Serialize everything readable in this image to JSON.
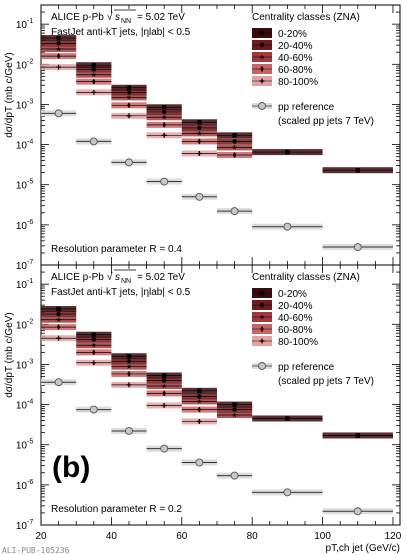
{
  "figure_id": "ALI-PUB-105236",
  "chart_data": [
    {
      "type": "scatter",
      "panel_label": "",
      "system_text": "ALICE p-Pb",
      "energy_text": "= 5.02 TeV",
      "jet_text": "FastJet anti-kT jets, |ηlab| < 0.5",
      "resolution_text": "Resolution parameter R = 0.4",
      "legend_title": "Centrality classes (ZNA)",
      "legend_placement": "top-right",
      "ylabel": "dσ/dpT (mb c/GeV)",
      "yscale": "log",
      "ylim": [
        1e-07,
        0.3
      ],
      "xlim": [
        20,
        122
      ],
      "x": [
        25,
        35,
        45,
        55,
        65,
        75,
        90,
        110
      ],
      "xerr": [
        5,
        5,
        5,
        5,
        5,
        5,
        10,
        10
      ],
      "series": [
        {
          "name": "0-20%",
          "marker": "square",
          "color": "#3d0a0e",
          "values": [
            0.045,
            0.0095,
            0.0026,
            0.00085,
            0.00036,
            0.00017,
            6.5e-05,
            2.3e-05
          ]
        },
        {
          "name": "20-40%",
          "marker": "circle",
          "color": "#6e1a1f",
          "values": [
            0.033,
            0.0075,
            0.002,
            0.00065,
            0.00026,
            0.00012,
            null,
            null
          ]
        },
        {
          "name": "40-60%",
          "marker": "star",
          "color": "#a13a3c",
          "values": [
            0.024,
            0.0055,
            0.0015,
            0.00048,
            0.00019,
            8.5e-05,
            null,
            null
          ]
        },
        {
          "name": "60-80%",
          "marker": "diamond",
          "color": "#c96466",
          "values": [
            0.016,
            0.0037,
            0.00095,
            0.00031,
            0.00012,
            5.5e-05,
            null,
            null
          ]
        },
        {
          "name": "80-100%",
          "marker": "cross",
          "color": "#e5a2a3",
          "values": [
            0.0085,
            0.002,
            0.00052,
            0.00017,
            6e-05,
            null,
            null,
            null
          ]
        },
        {
          "name": "pp reference",
          "name2": "(scaled pp jets 7 TeV)",
          "marker": "open-circle",
          "color": "#bfbfbf",
          "values": [
            0.0006,
            0.00012,
            3.6e-05,
            1.2e-05,
            5e-06,
            2.2e-06,
            9e-07,
            2.8e-07
          ]
        }
      ]
    },
    {
      "type": "scatter",
      "panel_label": "(b)",
      "system_text": "ALICE p-Pb",
      "energy_text": "= 5.02 TeV",
      "jet_text": "FastJet anti-kT jets, |ηlab| < 0.5",
      "resolution_text": "Resolution parameter R = 0.2",
      "legend_title": "Centrality classes (ZNA)",
      "legend_placement": "top-right",
      "ylabel": "dσ/dpT (mb c/GeV)",
      "xlabel": "pT,ch jet (GeV/c)",
      "yscale": "log",
      "ylim": [
        1e-07,
        0.3
      ],
      "xlim": [
        20,
        122
      ],
      "xticks": [
        20,
        40,
        60,
        80,
        100,
        120
      ],
      "x": [
        25,
        35,
        45,
        55,
        65,
        75,
        90,
        110
      ],
      "xerr": [
        5,
        5,
        5,
        5,
        5,
        5,
        10,
        10
      ],
      "series": [
        {
          "name": "0-20%",
          "marker": "square",
          "color": "#3d0a0e",
          "values": [
            0.024,
            0.0055,
            0.0016,
            0.00053,
            0.00022,
            0.0001,
            4.5e-05,
            1.7e-05
          ]
        },
        {
          "name": "20-40%",
          "marker": "circle",
          "color": "#6e1a1f",
          "values": [
            0.018,
            0.0042,
            0.0012,
            0.0004,
            0.00016,
            7.5e-05,
            null,
            null
          ]
        },
        {
          "name": "40-60%",
          "marker": "star",
          "color": "#a13a3c",
          "values": [
            0.013,
            0.003,
            0.00088,
            0.00029,
            0.00012,
            5.5e-05,
            null,
            null
          ]
        },
        {
          "name": "60-80%",
          "marker": "diamond",
          "color": "#c96466",
          "values": [
            0.0085,
            0.002,
            0.00058,
            0.00019,
            7.5e-05,
            null,
            null,
            null
          ]
        },
        {
          "name": "80-100%",
          "marker": "cross",
          "color": "#e5a2a3",
          "values": [
            0.0045,
            0.0011,
            0.00031,
            9.5e-05,
            3.8e-05,
            null,
            null,
            null
          ]
        },
        {
          "name": "pp reference",
          "name2": "(scaled pp jets 7 TeV)",
          "marker": "open-circle",
          "color": "#bfbfbf",
          "values": [
            0.00036,
            7.5e-05,
            2.2e-05,
            8e-06,
            3.6e-06,
            1.7e-06,
            6.5e-07,
            2.2e-07
          ]
        }
      ]
    }
  ]
}
